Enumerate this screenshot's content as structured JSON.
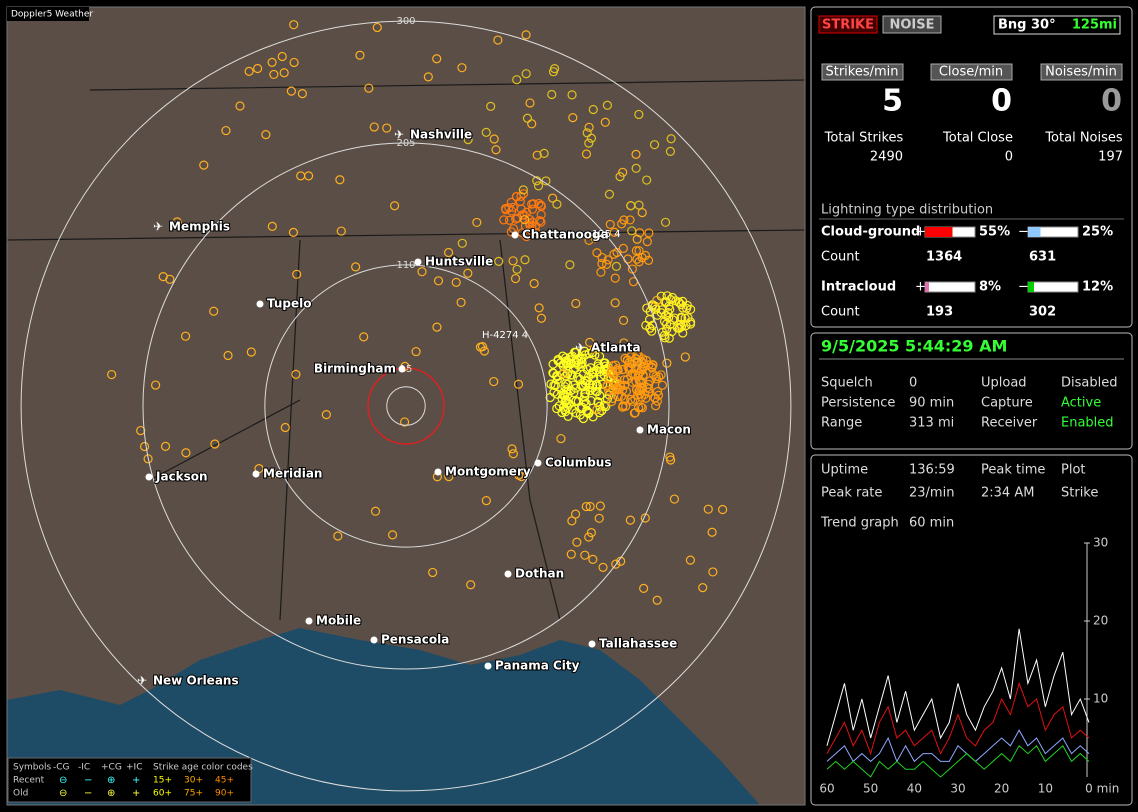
{
  "map": {
    "title": "Doppler5 Weather",
    "rings": [
      15,
      110,
      205,
      300
    ],
    "cities": [
      "Nashville",
      "Memphis",
      "Chattanooga",
      "Huntsville",
      "Tupelo",
      "Birmingham",
      "Atlanta",
      "Macon",
      "Jackson",
      "Meridian",
      "Montgomery",
      "Columbus",
      "Dothan",
      "Mobile",
      "Pensacola",
      "Tallahassee",
      "Panama City",
      "New Orleans"
    ],
    "annotations": [
      "125 4",
      "H-4274 4"
    ],
    "legend": {
      "header": [
        "Symbols",
        "-CG",
        "-IC",
        "+CG",
        "+IC",
        "Strike age color codes"
      ],
      "rows": [
        {
          "label": "Recent",
          "ages": [
            "15+",
            "30+",
            "45+"
          ]
        },
        {
          "label": "Old",
          "ages": [
            "60+",
            "75+",
            "90+"
          ]
        }
      ]
    }
  },
  "status": {
    "strike": "STRIKE",
    "noise": "NOISE",
    "bearing": "Bng 30°",
    "range": "125mi"
  },
  "rates": [
    {
      "label": "Strikes/min",
      "value": 5
    },
    {
      "label": "Close/min",
      "value": 0
    },
    {
      "label": "Noises/min",
      "value": 0
    }
  ],
  "totals": [
    {
      "label": "Total Strikes",
      "value": 2490
    },
    {
      "label": "Total Close",
      "value": 0
    },
    {
      "label": "Total Noises",
      "value": 197
    }
  ],
  "distribution": {
    "title": "Lightning type distribution",
    "groups": [
      {
        "label": "Cloud-ground",
        "count_label": "Count",
        "signs": [
          "+",
          "−"
        ],
        "values": [
          55,
          25
        ],
        "value_labels": [
          "55%",
          "25%"
        ],
        "counts": [
          1364,
          631
        ],
        "colors": [
          "#ff0000",
          "#8fc8ff"
        ]
      },
      {
        "label": "Intracloud",
        "count_label": "Count",
        "signs": [
          "+",
          "−"
        ],
        "values": [
          8,
          12
        ],
        "value_labels": [
          "8%",
          "12%"
        ],
        "counts": [
          193,
          302
        ],
        "colors": [
          "#e070b0",
          "#00d000"
        ]
      }
    ]
  },
  "clock": "9/5/2025 5:44:29 AM",
  "settings": [
    [
      "Squelch",
      "0",
      "Upload",
      "Disabled"
    ],
    [
      "Persistence",
      "90 min",
      "Capture",
      "Active"
    ],
    [
      "Range",
      "313 mi",
      "Receiver",
      "Enabled"
    ]
  ],
  "stats": [
    [
      "Uptime",
      "136:59",
      "Peak time",
      "Plot"
    ],
    [
      "Peak rate",
      "23/min",
      "2:34 AM",
      "Strike"
    ]
  ],
  "trend": {
    "label": "Trend graph",
    "window": "60 min"
  },
  "chart_data": {
    "type": "line",
    "x": [
      60,
      58,
      56,
      54,
      52,
      50,
      48,
      46,
      44,
      42,
      40,
      38,
      36,
      34,
      32,
      30,
      28,
      26,
      24,
      22,
      20,
      18,
      16,
      14,
      12,
      10,
      8,
      6,
      4,
      2,
      0
    ],
    "xlim": [
      60,
      0
    ],
    "xticks": [
      60,
      50,
      40,
      30,
      20,
      10,
      0
    ],
    "xlabel": "min",
    "ylim": [
      0,
      30
    ],
    "yticks": [
      10,
      20,
      30
    ],
    "series": [
      {
        "color": "#ffffff",
        "values": [
          4,
          8,
          12,
          6,
          10,
          5,
          9,
          13,
          7,
          11,
          6,
          8,
          10,
          5,
          7,
          12,
          8,
          6,
          9,
          11,
          14,
          10,
          19,
          12,
          15,
          9,
          13,
          16,
          8,
          10,
          7
        ]
      },
      {
        "color": "#e01010",
        "values": [
          3,
          5,
          7,
          4,
          6,
          3,
          7,
          9,
          5,
          6,
          4,
          5,
          6,
          3,
          5,
          8,
          5,
          4,
          6,
          7,
          10,
          8,
          12,
          9,
          10,
          6,
          8,
          9,
          5,
          6,
          5
        ]
      },
      {
        "color": "#8fa8ff",
        "values": [
          2,
          3,
          4,
          2,
          3,
          2,
          3,
          5,
          2,
          4,
          2,
          3,
          3,
          2,
          2,
          4,
          3,
          2,
          3,
          4,
          5,
          4,
          6,
          4,
          5,
          3,
          4,
          5,
          3,
          4,
          3
        ]
      },
      {
        "color": "#20d020",
        "values": [
          1,
          2,
          1,
          2,
          1,
          0,
          2,
          1,
          2,
          1,
          1,
          2,
          1,
          0,
          1,
          2,
          3,
          2,
          1,
          2,
          3,
          2,
          4,
          3,
          4,
          2,
          3,
          4,
          2,
          3,
          2
        ]
      }
    ]
  }
}
